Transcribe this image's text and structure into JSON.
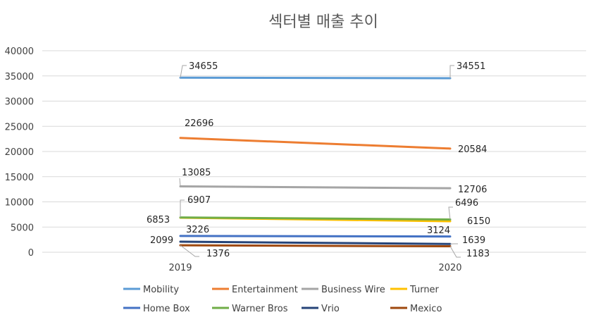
{
  "chart_data": {
    "type": "line",
    "title": "섹터별 매출 추이",
    "categories": [
      "2019",
      "2020"
    ],
    "ylim": [
      0,
      40000
    ],
    "yticks": [
      0,
      5000,
      10000,
      15000,
      20000,
      25000,
      30000,
      35000,
      40000
    ],
    "grid": true,
    "legend": "bottom",
    "series": [
      {
        "name": "Mobility",
        "values": [
          34655,
          34551
        ],
        "color": "#5B9BD5"
      },
      {
        "name": "Entertainment",
        "values": [
          22696,
          20584
        ],
        "color": "#ED7D31"
      },
      {
        "name": "Business Wire",
        "values": [
          13085,
          12706
        ],
        "color": "#A5A5A5"
      },
      {
        "name": "Turner",
        "values": [
          6853,
          6150
        ],
        "color": "#FFC000"
      },
      {
        "name": "Home Box",
        "values": [
          3226,
          3124
        ],
        "color": "#4472C4"
      },
      {
        "name": "Warner Bros",
        "values": [
          6907,
          6496
        ],
        "color": "#70AD47"
      },
      {
        "name": "Vrio",
        "values": [
          2099,
          1639
        ],
        "color": "#264478"
      },
      {
        "name": "Mexico",
        "values": [
          1376,
          1183
        ],
        "color": "#9E480E"
      }
    ]
  }
}
